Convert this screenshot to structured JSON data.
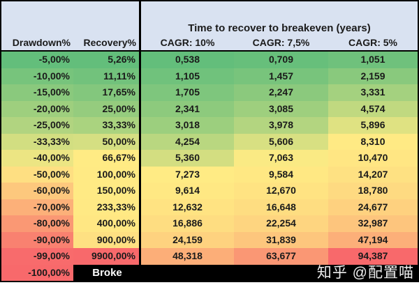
{
  "table": {
    "header": {
      "drawdown_label": "Drawdown%",
      "recovery_label": "Recovery%",
      "time_title": "Time to recover to breakeven (years)",
      "cagr_10": "CAGR: 10%",
      "cagr_7_5": "CAGR: 7,5%",
      "cagr_5": "CAGR: 5%"
    },
    "rows": [
      {
        "values": [
          "-5,00%",
          "5,26%",
          "0,538",
          "0,709",
          "1,051"
        ],
        "colors": [
          "#63BE7B",
          "#63BE7B",
          "#63BE7B",
          "#67BF7B",
          "#6FC17C"
        ]
      },
      {
        "values": [
          "-10,00%",
          "11,11%",
          "1,105",
          "1,457",
          "2,159"
        ],
        "colors": [
          "#77C47C",
          "#72C27C",
          "#70C27C",
          "#78C47C",
          "#89C97D"
        ]
      },
      {
        "values": [
          "-15,00%",
          "17,65%",
          "1,705",
          "2,247",
          "3,331"
        ],
        "colors": [
          "#8AC97D",
          "#83C77D",
          "#7EC67D",
          "#8BC97D",
          "#A4D17F"
        ]
      },
      {
        "values": [
          "-20,00%",
          "25,00%",
          "2,341",
          "3,085",
          "4,574"
        ],
        "colors": [
          "#9ECF7E",
          "#95CC7E",
          "#8DCA7D",
          "#9ECF7E",
          "#C0D980"
        ]
      },
      {
        "values": [
          "-25,00%",
          "33,33%",
          "3,018",
          "3,978",
          "5,896"
        ],
        "colors": [
          "#B1D480",
          "#AAD37F",
          "#9CCF7E",
          "#B3D580",
          "#DFE282"
        ]
      },
      {
        "values": [
          "-33,33%",
          "50,00%",
          "4,254",
          "5,606",
          "8,310"
        ],
        "colors": [
          "#D2DE81",
          "#D5DF82",
          "#B9D780",
          "#D8E082",
          "#FFEA84"
        ]
      },
      {
        "values": [
          "-40,00%",
          "66,67%",
          "5,360",
          "7,063",
          "10,470"
        ],
        "colors": [
          "#ECE583",
          "#FFEB84",
          "#D3DE81",
          "#FAEA84",
          "#FFE683"
        ]
      },
      {
        "values": [
          "-50,00%",
          "100,00%",
          "7,273",
          "9,584",
          "14,207"
        ],
        "colors": [
          "#FEDF82",
          "#FFEA84",
          "#FFEB84",
          "#FFE883",
          "#FEE182"
        ]
      },
      {
        "values": [
          "-60,00%",
          "150,00%",
          "9,614",
          "12,670",
          "18,780"
        ],
        "colors": [
          "#FDC87D",
          "#FFEA84",
          "#FFE883",
          "#FFE382",
          "#FEDA81"
        ]
      },
      {
        "values": [
          "-70,00%",
          "233,33%",
          "12,632",
          "16,648",
          "24,677"
        ],
        "colors": [
          "#FCB079",
          "#FFE984",
          "#FFE382",
          "#FEDD81",
          "#FED17F"
        ]
      },
      {
        "values": [
          "-80,00%",
          "400,00%",
          "16,886",
          "22,254",
          "32,987"
        ],
        "colors": [
          "#FA9874",
          "#FFE783",
          "#FEDD81",
          "#FED580",
          "#FDC57D"
        ]
      },
      {
        "values": [
          "-90,00%",
          "900,00%",
          "24,159",
          "31,839",
          "47,194"
        ],
        "colors": [
          "#F98170",
          "#FEE082",
          "#FED27F",
          "#FDC67D",
          "#FCAF79"
        ]
      },
      {
        "values": [
          "-99,00%",
          "9900,00%",
          "48,318",
          "63,677",
          "94,387"
        ],
        "colors": [
          "#F86B6C",
          "#F8696B",
          "#FCAE78",
          "#FA9774",
          "#F8696B"
        ]
      }
    ],
    "broke_row": {
      "drawdown": "-100,00%",
      "drawdown_bg": "#F8696B",
      "label": "Broke",
      "bg": "#000000"
    }
  },
  "watermark": {
    "text": "知乎 @配置喵"
  },
  "colors": {
    "header_bg": "#D9E2F1",
    "border": "#000000",
    "text": "#1A1A1A",
    "scale_green": "#63BE7B",
    "scale_yellow": "#FFEB84",
    "scale_red": "#F8696B",
    "broke_text": "#FFFFFF"
  },
  "chart_data": {
    "type": "table",
    "title": "Time to recover to breakeven (years)",
    "columns": [
      "Drawdown%",
      "Recovery%",
      "CAGR: 10%",
      "CAGR: 7,5%",
      "CAGR: 5%"
    ],
    "rows": [
      [
        "-5,00%",
        "5,26%",
        "0,538",
        "0,709",
        "1,051"
      ],
      [
        "-10,00%",
        "11,11%",
        "1,105",
        "1,457",
        "2,159"
      ],
      [
        "-15,00%",
        "17,65%",
        "1,705",
        "2,247",
        "3,331"
      ],
      [
        "-20,00%",
        "25,00%",
        "2,341",
        "3,085",
        "4,574"
      ],
      [
        "-25,00%",
        "33,33%",
        "3,018",
        "3,978",
        "5,896"
      ],
      [
        "-33,33%",
        "50,00%",
        "4,254",
        "5,606",
        "8,310"
      ],
      [
        "-40,00%",
        "66,67%",
        "5,360",
        "7,063",
        "10,470"
      ],
      [
        "-50,00%",
        "100,00%",
        "7,273",
        "9,584",
        "14,207"
      ],
      [
        "-60,00%",
        "150,00%",
        "9,614",
        "12,670",
        "18,780"
      ],
      [
        "-70,00%",
        "233,33%",
        "12,632",
        "16,648",
        "24,677"
      ],
      [
        "-80,00%",
        "400,00%",
        "16,886",
        "22,254",
        "32,987"
      ],
      [
        "-90,00%",
        "900,00%",
        "24,159",
        "31,839",
        "47,194"
      ],
      [
        "-99,00%",
        "9900,00%",
        "48,318",
        "63,677",
        "94,387"
      ],
      [
        "-100,00%",
        "Broke",
        "",
        "",
        ""
      ]
    ],
    "layout_hints": {
      "color_scale": "red-yellow-green conditional formatting per column (green=best, red=worst)",
      "header_background": "#D9E2F1",
      "last_row_style": "black background, white bold 'Broke' label spanning all columns after Drawdown%"
    }
  }
}
